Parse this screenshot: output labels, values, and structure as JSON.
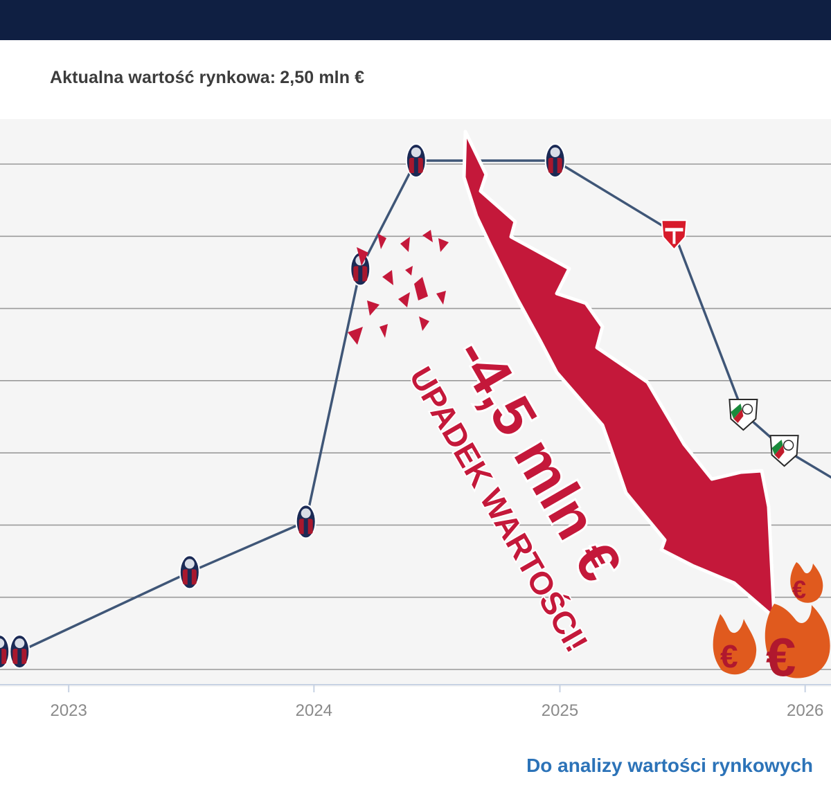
{
  "header": {
    "bar_color": "#0f1f42"
  },
  "market_value": {
    "label": "Aktualna wartość rynkowa:",
    "value": "2,50 mln €"
  },
  "overlay": {
    "drop_amount": "-4,5 mln €",
    "drop_caption": "UPADEK WARTOŚCI!",
    "accent_color": "#c4183a",
    "euro_symbol": "€"
  },
  "footer": {
    "link_label": "Do analizy wartości rynkowych",
    "link_color": "#2c73b8"
  },
  "chart_data": {
    "type": "line",
    "x_ticks": [
      "2023",
      "2024",
      "2025",
      "2026"
    ],
    "y_axis": {
      "labels_visible": false
    },
    "grid": true,
    "series": [
      {
        "points": [
          {
            "x": "2022-09-20",
            "y": 0.2,
            "club": "Bologna FC"
          },
          {
            "x": "2022-10-20",
            "y": 0.2,
            "club": "Bologna FC"
          },
          {
            "x": "2023-06-30",
            "y": 1.3,
            "club": "Bologna FC"
          },
          {
            "x": "2023-12-20",
            "y": 2.0,
            "club": "Bologna FC"
          },
          {
            "x": "2024-03-10",
            "y": 5.5,
            "club": "Bologna FC"
          },
          {
            "x": "2024-06-01",
            "y": 7.0,
            "club": "Bologna FC"
          },
          {
            "x": "2024-12-25",
            "y": 7.0,
            "club": "Bologna FC"
          },
          {
            "x": "2025-06-20",
            "y": 6.0,
            "club": "AC Monza"
          },
          {
            "x": "2025-10-01",
            "y": 3.5,
            "club": "Legia Warszawa"
          },
          {
            "x": "2025-12-01",
            "y": 3.0,
            "club": "Legia Warszawa"
          },
          {
            "x": "2026-03-01",
            "y": 2.5,
            "club": ""
          }
        ]
      }
    ]
  }
}
